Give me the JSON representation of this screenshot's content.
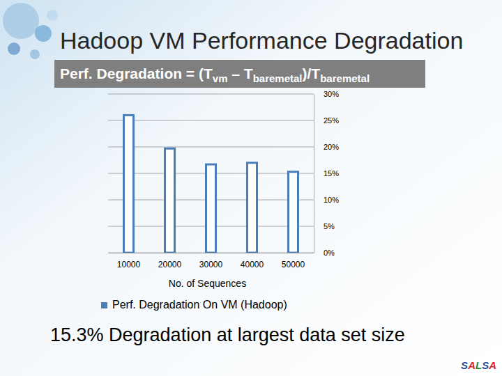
{
  "slide": {
    "title": "Hadoop VM Performance Degradation",
    "formula": [
      {
        "text": "Perf. Degradation = (T",
        "sub": false
      },
      {
        "text": "vm",
        "sub": true
      },
      {
        "text": " – T",
        "sub": false
      },
      {
        "text": "baremetal",
        "sub": true
      },
      {
        "text": ")/T",
        "sub": false
      },
      {
        "text": "baremetal",
        "sub": true
      }
    ],
    "footer": "15.3% Degradation at largest data set size",
    "logo": "SALSA"
  },
  "chart_data": {
    "type": "bar",
    "categories": [
      "10000",
      "20000",
      "30000",
      "40000",
      "50000"
    ],
    "series": [
      {
        "name": "Perf. Degradation On VM (Hadoop)",
        "color": "#4a7ebb",
        "values": [
          26,
          19.7,
          16.7,
          17,
          15.3
        ]
      }
    ],
    "x_label": "No. of Sequences",
    "ylim": [
      0,
      30
    ],
    "yticks": [
      {
        "value": 0,
        "label": "0%"
      },
      {
        "value": 5,
        "label": "5%"
      },
      {
        "value": 10,
        "label": "10%"
      },
      {
        "value": 15,
        "label": "15%"
      },
      {
        "value": 20,
        "label": "20%"
      },
      {
        "value": 25,
        "label": "25%"
      },
      {
        "value": 30,
        "label": "30%"
      }
    ],
    "grid": true,
    "legend": "bottom"
  }
}
